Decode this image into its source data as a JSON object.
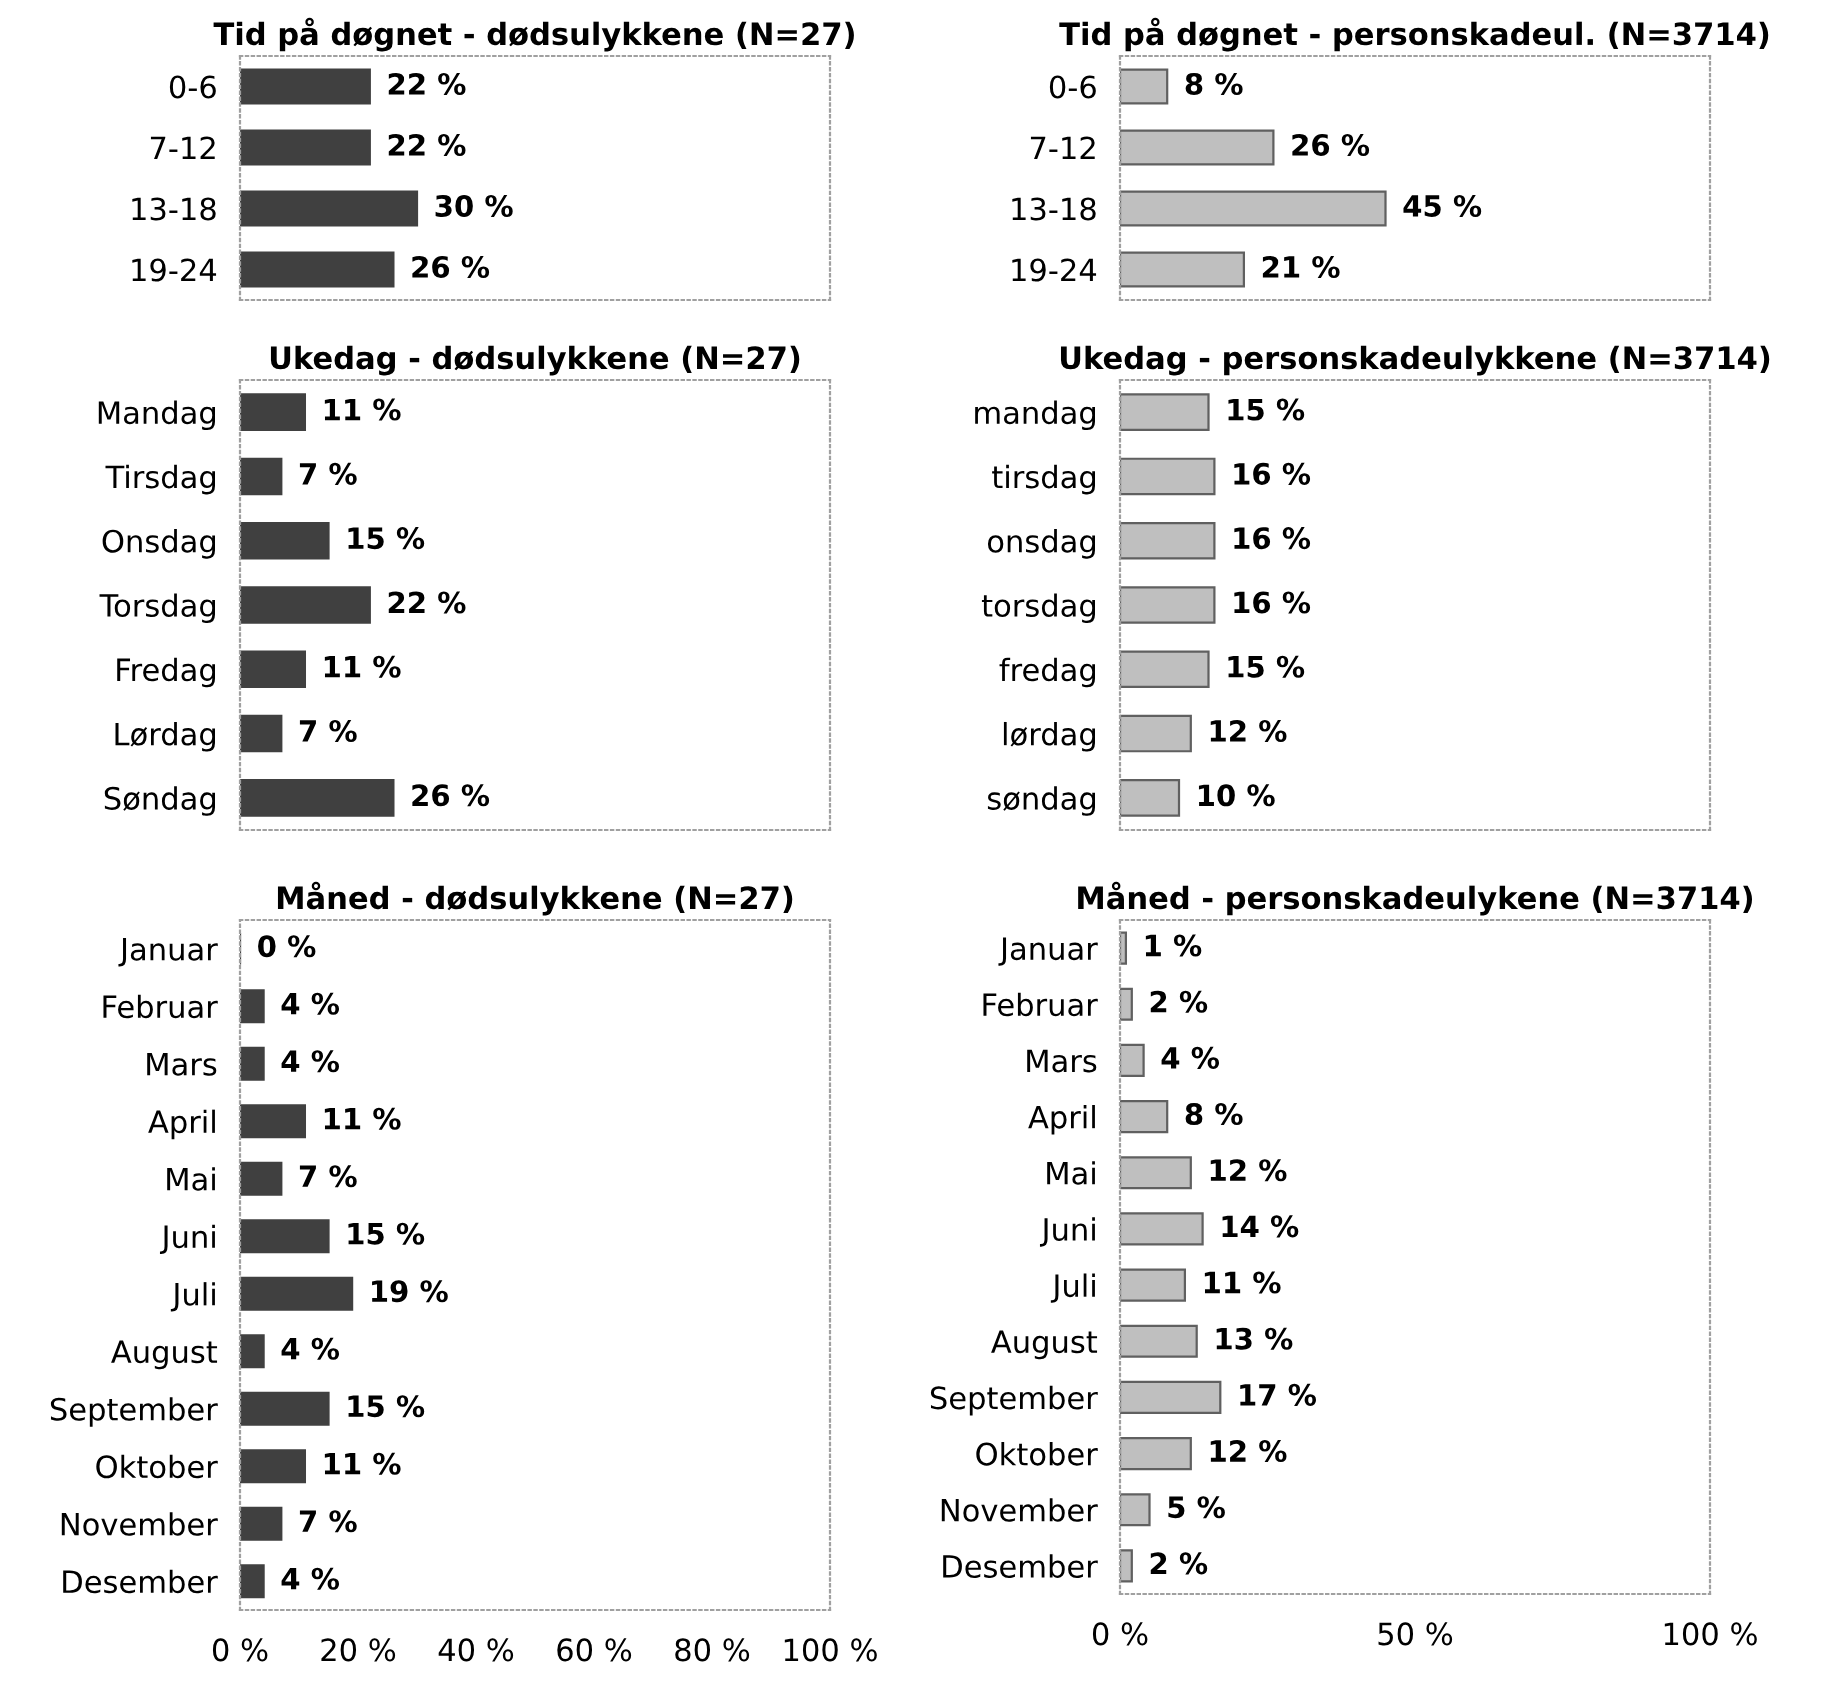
{
  "chart_data": [
    {
      "type": "bar",
      "orientation": "horizontal",
      "title": "Tid på døgnet - dødsulykkene (N=27)",
      "categories": [
        "0-6",
        "7-12",
        "13-18",
        "19-24"
      ],
      "values": [
        22,
        22,
        30,
        26
      ],
      "value_labels": [
        "22 %",
        "22 %",
        "30 %",
        "26 %"
      ],
      "color": "#404040",
      "xlim": [
        0,
        100
      ],
      "tick_labels": "y"
    },
    {
      "type": "bar",
      "orientation": "horizontal",
      "title": "Tid på døgnet - personskadeul. (N=3714)",
      "categories": [
        "0-6",
        "7-12",
        "13-18",
        "19-24"
      ],
      "values": [
        8,
        26,
        45,
        21
      ],
      "value_labels": [
        "8 %",
        "26 %",
        "45 %",
        "21 %"
      ],
      "color": "#bfbfbf",
      "xlim": [
        0,
        100
      ],
      "tick_labels": "y"
    },
    {
      "type": "bar",
      "orientation": "horizontal",
      "title": "Ukedag - dødsulykkene (N=27)",
      "categories": [
        "Mandag",
        "Tirsdag",
        "Onsdag",
        "Torsdag",
        "Fredag",
        "Lørdag",
        "Søndag"
      ],
      "values": [
        11,
        7,
        15,
        22,
        11,
        7,
        26
      ],
      "value_labels": [
        "11 %",
        "7 %",
        "15 %",
        "22 %",
        "11 %",
        "7 %",
        "26 %"
      ],
      "color": "#404040",
      "xlim": [
        0,
        100
      ],
      "tick_labels": "y"
    },
    {
      "type": "bar",
      "orientation": "horizontal",
      "title": "Ukedag - personskadeulykkene (N=3714)",
      "categories": [
        "mandag",
        "tirsdag",
        "onsdag",
        "torsdag",
        "fredag",
        "lørdag",
        "søndag"
      ],
      "values": [
        15,
        16,
        16,
        16,
        15,
        12,
        10
      ],
      "value_labels": [
        "15 %",
        "16 %",
        "16 %",
        "16 %",
        "15 %",
        "12 %",
        "10 %"
      ],
      "color": "#bfbfbf",
      "xlim": [
        0,
        100
      ],
      "tick_labels": "y"
    },
    {
      "type": "bar",
      "orientation": "horizontal",
      "title": "Måned - dødsulykkene (N=27)",
      "categories": [
        "Januar",
        "Februar",
        "Mars",
        "April",
        "Mai",
        "Juni",
        "Juli",
        "August",
        "September",
        "Oktober",
        "November",
        "Desember"
      ],
      "values": [
        0,
        4,
        4,
        11,
        7,
        15,
        19,
        4,
        15,
        11,
        7,
        4
      ],
      "value_labels": [
        "0 %",
        "4 %",
        "4 %",
        "11 %",
        "7 %",
        "15 %",
        "19 %",
        "4 %",
        "15 %",
        "11 %",
        "7 %",
        "4 %"
      ],
      "color": "#404040",
      "xlim": [
        0,
        100
      ],
      "xticks": [
        {
          "value": 0,
          "label": "0 %"
        },
        {
          "value": 20,
          "label": "20 %"
        },
        {
          "value": 40,
          "label": "40 %"
        },
        {
          "value": 60,
          "label": "60 %"
        },
        {
          "value": 80,
          "label": "80 %"
        },
        {
          "value": 100,
          "label": "100 %"
        }
      ]
    },
    {
      "type": "bar",
      "orientation": "horizontal",
      "title": "Måned - personskadeulykene (N=3714)",
      "categories": [
        "Januar",
        "Februar",
        "Mars",
        "April",
        "Mai",
        "Juni",
        "Juli",
        "August",
        "September",
        "Oktober",
        "November",
        "Desember"
      ],
      "values": [
        1,
        2,
        4,
        8,
        12,
        14,
        11,
        13,
        17,
        12,
        5,
        2
      ],
      "value_labels": [
        "1 %",
        "2 %",
        "4 %",
        "8 %",
        "12 %",
        "14 %",
        "11 %",
        "13 %",
        "17 %",
        "12 %",
        "5 %",
        "2 %"
      ],
      "color": "#bfbfbf",
      "xlim": [
        0,
        100
      ],
      "xticks": [
        {
          "value": 0,
          "label": "0 %"
        },
        {
          "value": 50,
          "label": "50 %"
        },
        {
          "value": 100,
          "label": "100 %"
        }
      ]
    }
  ]
}
